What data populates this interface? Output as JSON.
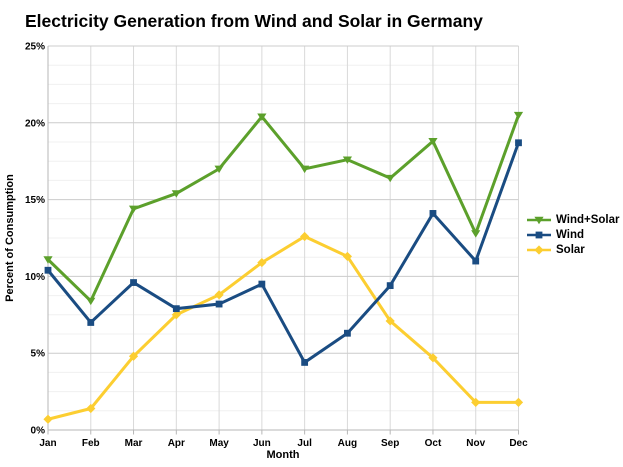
{
  "chart_data": {
    "type": "line",
    "title": "Electricity Generation from Wind and Solar in Germany",
    "xlabel": "Month",
    "ylabel": "Percent of Consumption",
    "categories": [
      "Jan",
      "Feb",
      "Mar",
      "Apr",
      "May",
      "Jun",
      "Jul",
      "Aug",
      "Sep",
      "Oct",
      "Nov",
      "Dec"
    ],
    "y_tick_labels": [
      "0%",
      "5%",
      "10%",
      "15%",
      "20%",
      "25%"
    ],
    "ylim": [
      0,
      25
    ],
    "y_major_step": 5,
    "y_minor_step": 1.25,
    "grid": true,
    "legend_position": "right",
    "series": [
      {
        "name": "Wind+Solar",
        "color": "#5CA02B",
        "marker": "triangle-down",
        "values": [
          11.1,
          8.4,
          14.4,
          15.4,
          17.0,
          20.4,
          17.0,
          17.6,
          16.4,
          18.8,
          12.8,
          20.5
        ]
      },
      {
        "name": "Wind",
        "color": "#1A4C82",
        "marker": "square",
        "values": [
          10.4,
          7.0,
          9.6,
          7.9,
          8.2,
          9.5,
          4.4,
          6.3,
          9.4,
          14.1,
          11.0,
          18.7
        ]
      },
      {
        "name": "Solar",
        "color": "#FCCE31",
        "marker": "diamond",
        "values": [
          0.7,
          1.4,
          4.8,
          7.5,
          8.8,
          10.9,
          12.6,
          11.3,
          7.1,
          4.7,
          1.8,
          1.8
        ]
      }
    ]
  },
  "colors": {
    "background": "#FFFFFF",
    "text": "#000000",
    "major_grid": "#CCCCCC",
    "minor_grid": "#F0F0F0",
    "vertical_grid": "#D9D9D9",
    "axis": "#B7B7B7"
  }
}
